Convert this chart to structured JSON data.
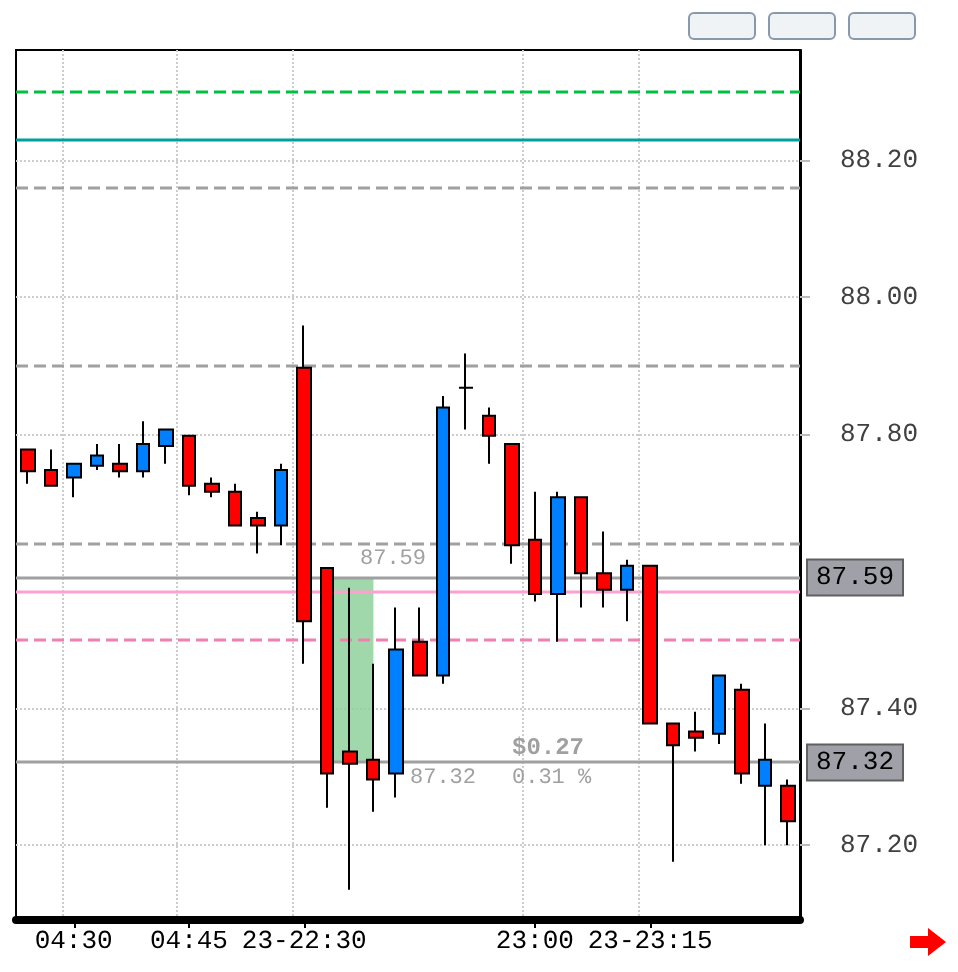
{
  "chart_data": {
    "type": "candlestick",
    "categories": [
      null,
      null,
      "04:30",
      null,
      null,
      null,
      null,
      "04:45",
      null,
      null,
      null,
      null,
      "23-22:30",
      null,
      null,
      null,
      null,
      null,
      null,
      null,
      null,
      null,
      "23:00",
      null,
      null,
      null,
      null,
      "23-23:15",
      null,
      null,
      null,
      null,
      null,
      null
    ],
    "ohlc": [
      [
        87.777,
        87.777,
        87.727,
        87.745
      ],
      [
        87.747,
        87.777,
        87.724,
        87.724
      ],
      [
        87.736,
        87.756,
        87.707,
        87.756
      ],
      [
        87.753,
        87.785,
        87.747,
        87.768
      ],
      [
        87.756,
        87.785,
        87.736,
        87.745
      ],
      [
        87.745,
        87.818,
        87.736,
        87.785
      ],
      [
        87.782,
        87.806,
        87.756,
        87.806
      ],
      [
        87.797,
        87.797,
        87.71,
        87.724
      ],
      [
        87.727,
        87.736,
        87.707,
        87.715
      ],
      [
        87.715,
        87.727,
        87.666,
        87.666
      ],
      [
        87.677,
        87.686,
        87.625,
        87.666
      ],
      [
        87.666,
        87.756,
        87.637,
        87.747
      ],
      [
        87.896,
        87.958,
        87.464,
        87.526
      ],
      [
        87.604,
        87.604,
        87.254,
        87.304
      ],
      [
        87.336,
        87.575,
        87.134,
        87.318
      ],
      [
        87.324,
        87.464,
        87.248,
        87.295
      ],
      [
        87.304,
        87.546,
        87.269,
        87.485
      ],
      [
        87.496,
        87.546,
        87.447,
        87.447
      ],
      [
        87.447,
        87.855,
        87.435,
        87.838
      ],
      [
        87.867,
        87.917,
        87.806,
        87.867
      ],
      [
        87.826,
        87.838,
        87.756,
        87.797
      ],
      [
        87.785,
        87.785,
        87.61,
        87.637
      ],
      [
        87.645,
        87.715,
        87.555,
        87.566
      ],
      [
        87.566,
        87.715,
        87.496,
        87.707
      ],
      [
        87.707,
        87.707,
        87.546,
        87.596
      ],
      [
        87.596,
        87.657,
        87.546,
        87.572
      ],
      [
        87.572,
        87.616,
        87.526,
        87.607
      ],
      [
        87.607,
        87.607,
        87.377,
        87.377
      ],
      [
        87.377,
        87.377,
        87.175,
        87.345
      ],
      [
        87.365,
        87.394,
        87.336,
        87.356
      ],
      [
        87.362,
        87.447,
        87.347,
        87.447
      ],
      [
        87.426,
        87.435,
        87.289,
        87.304
      ],
      [
        87.286,
        87.377,
        87.199,
        87.324
      ],
      [
        87.286,
        87.295,
        87.199,
        87.234
      ]
    ],
    "colors": [
      "#ff0000",
      "#ff0000",
      "#0080ff",
      "#0080ff",
      "#ff0000",
      "#0080ff",
      "#0080ff",
      "#ff0000",
      "#ff0000",
      "#ff0000",
      "#ff0000",
      "#0080ff",
      "#ff0000",
      "#ff0000",
      "#ff0000",
      "#ff0000",
      "#0080ff",
      "#ff0000",
      "#0080ff",
      "#000000",
      "#ff0000",
      "#ff0000",
      "#ff0000",
      "#0080ff",
      "#ff0000",
      "#ff0000",
      "#0080ff",
      "#ff0000",
      "#ff0000",
      "#ff0000",
      "#0080ff",
      "#ff0000",
      "#0080ff",
      "#ff0000"
    ],
    "ylim": [
      87.09,
      88.36
    ],
    "yticks": [
      {
        "value": 87.2,
        "label": "87.20"
      },
      {
        "value": 87.4,
        "label": "87.40"
      },
      {
        "value": 87.8,
        "label": "87.80"
      },
      {
        "value": 88.0,
        "label": "88.00"
      },
      {
        "value": 88.2,
        "label": "88.20"
      }
    ],
    "grid": true,
    "ref_lines": [
      {
        "axis": "y",
        "value": 88.3,
        "color": "#00c040",
        "line_style": "dashed"
      },
      {
        "axis": "y",
        "value": 88.23,
        "color": "#00a0a0",
        "line_style": "solid"
      },
      {
        "axis": "y",
        "value": 88.16,
        "color": "#a0a0a0",
        "line_style": "dashed"
      },
      {
        "axis": "y",
        "value": 87.9,
        "color": "#a0a0a0",
        "line_style": "dashed"
      },
      {
        "axis": "y",
        "value": 87.64,
        "color": "#a0a0a0",
        "line_style": "dashed"
      },
      {
        "axis": "y",
        "value": 87.57,
        "color": "#ffa0d0",
        "line_style": "solid"
      },
      {
        "axis": "y",
        "value": 87.5,
        "color": "#f080b0",
        "line_style": "dashed"
      },
      {
        "axis": "y",
        "value": 87.59,
        "label": "87.59",
        "color": "#a0a0a0",
        "line_style": "solid"
      },
      {
        "axis": "y",
        "value": 87.32,
        "label": "87.32",
        "color": "#a0a0a0",
        "line_style": "solid"
      }
    ],
    "bands": [
      {
        "axis": "y",
        "from": 87.32,
        "to": 87.59,
        "color": "#8fd19e"
      }
    ],
    "annotations": [
      {
        "text": "87.59",
        "y": 87.59
      },
      {
        "text": "87.32",
        "y": 87.32
      },
      "$0.27",
      "0.31 %"
    ]
  }
}
